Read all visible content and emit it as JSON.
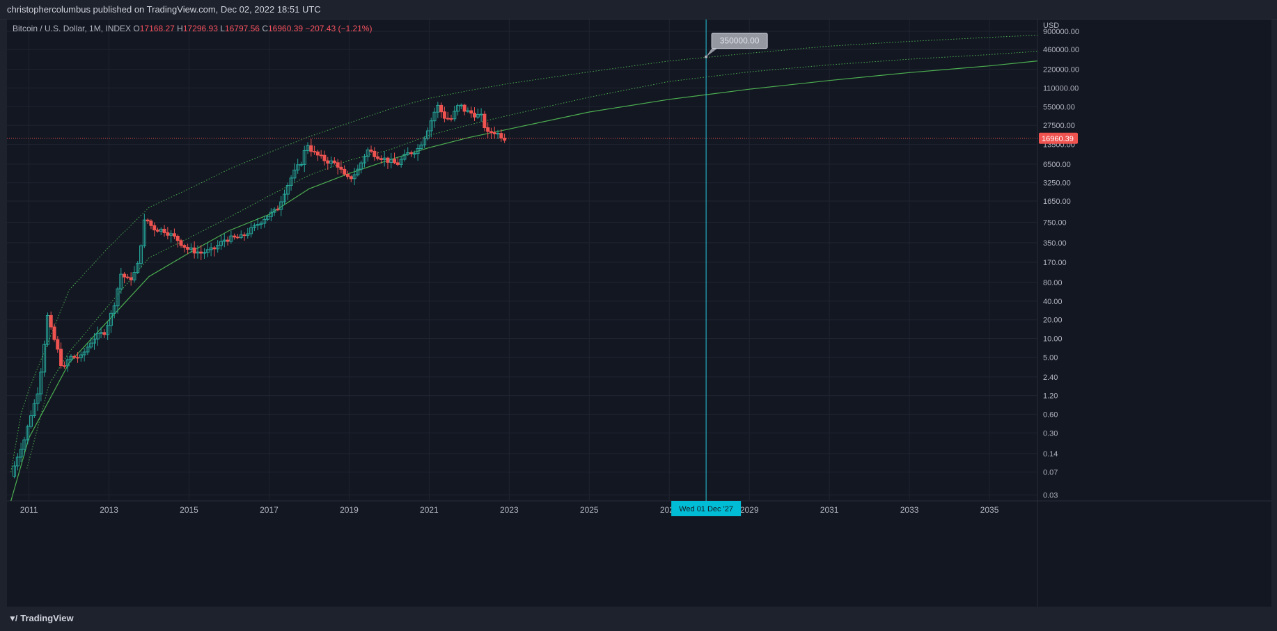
{
  "header": {
    "title": "christophercolumbus published on TradingView.com, Dec 02, 2022 18:51 UTC"
  },
  "legend": {
    "symbol": "Bitcoin / U.S. Dollar, 1M, INDEX",
    "o_label": "O",
    "o": "17168.27",
    "h_label": "H",
    "h": "17296.93",
    "l_label": "L",
    "l": "16797.56",
    "c_label": "C",
    "c": "16960.39",
    "change": "−207.43 (−1.21%)"
  },
  "footer": {
    "brand": "TradingView",
    "logo": "tradingview-logo-icon"
  },
  "colors": {
    "background": "#131722",
    "up": "#26a69a",
    "down": "#ef5350",
    "curve": "#4caf50",
    "price_line": "#ef5350",
    "crosshair": "#26c6da",
    "axis_text": "#b2b5be"
  },
  "chart_data": {
    "type": "candlestick",
    "y_scale": "log",
    "currency": "USD",
    "y_ticks": [
      "900000.00",
      "460000.00",
      "220000.00",
      "110000.00",
      "55000.00",
      "27500.00",
      "13500.00",
      "6500.00",
      "3250.00",
      "1650.00",
      "750.00",
      "350.00",
      "170.00",
      "80.00",
      "40.00",
      "20.00",
      "10.00",
      "5.00",
      "2.40",
      "1.20",
      "0.60",
      "0.30",
      "0.14",
      "0.07",
      "0.03"
    ],
    "x_ticks": [
      "2011",
      "2013",
      "2015",
      "2017",
      "2019",
      "2021",
      "2023",
      "2025",
      "2027",
      "2029",
      "2031",
      "2033",
      "2035"
    ],
    "xlim": [
      2010.45,
      2036.2
    ],
    "ylim": [
      0.024,
      1400000
    ],
    "last_price": "16960.39",
    "crosshair_date": "Wed 01 Dec '27",
    "crosshair_x": 2027.92,
    "annotation": {
      "text": "350000.00",
      "x": 2027.92,
      "y": 350000
    },
    "path": [
      [
        2010.55,
        0.06
      ],
      [
        2010.75,
        0.15
      ],
      [
        2010.9,
        0.25
      ],
      [
        2011.05,
        0.6
      ],
      [
        2011.2,
        1.2
      ],
      [
        2011.35,
        5
      ],
      [
        2011.45,
        25
      ],
      [
        2011.55,
        14
      ],
      [
        2011.7,
        7
      ],
      [
        2011.85,
        3
      ],
      [
        2012.0,
        5
      ],
      [
        2012.3,
        5
      ],
      [
        2012.6,
        10
      ],
      [
        2012.9,
        13
      ],
      [
        2013.1,
        30
      ],
      [
        2013.3,
        110
      ],
      [
        2013.5,
        85
      ],
      [
        2013.7,
        130
      ],
      [
        2013.9,
        900
      ],
      [
        2014.1,
        600
      ],
      [
        2014.4,
        550
      ],
      [
        2014.7,
        400
      ],
      [
        2014.95,
        280
      ],
      [
        2015.3,
        240
      ],
      [
        2015.6,
        270
      ],
      [
        2015.9,
        400
      ],
      [
        2016.3,
        430
      ],
      [
        2016.6,
        600
      ],
      [
        2016.9,
        900
      ],
      [
        2017.2,
        1200
      ],
      [
        2017.4,
        2500
      ],
      [
        2017.6,
        4500
      ],
      [
        2017.8,
        7000
      ],
      [
        2017.95,
        14000
      ],
      [
        2018.1,
        10000
      ],
      [
        2018.4,
        7500
      ],
      [
        2018.7,
        6500
      ],
      [
        2018.9,
        4000
      ],
      [
        2019.0,
        3700
      ],
      [
        2019.2,
        5000
      ],
      [
        2019.45,
        11000
      ],
      [
        2019.7,
        9000
      ],
      [
        2019.95,
        7500
      ],
      [
        2020.2,
        6500
      ],
      [
        2020.45,
        9500
      ],
      [
        2020.7,
        11000
      ],
      [
        2020.9,
        19000
      ],
      [
        2021.05,
        33000
      ],
      [
        2021.2,
        58000
      ],
      [
        2021.4,
        36000
      ],
      [
        2021.55,
        35000
      ],
      [
        2021.75,
        60000
      ],
      [
        2021.9,
        47000
      ],
      [
        2022.1,
        42000
      ],
      [
        2022.3,
        38000
      ],
      [
        2022.45,
        20000
      ],
      [
        2022.6,
        22000
      ],
      [
        2022.75,
        19500
      ],
      [
        2022.9,
        16960
      ]
    ],
    "curves": [
      {
        "name": "",
        "style": "solid",
        "points": [
          [
            2010.55,
            0.024
          ],
          [
            2011,
            0.25
          ],
          [
            2012,
            4
          ],
          [
            2013,
            20
          ],
          [
            2014,
            100
          ],
          [
            2015,
            240
          ],
          [
            2016,
            550
          ],
          [
            2017,
            1000
          ],
          [
            2018,
            2600
          ],
          [
            2019,
            4600
          ],
          [
            2020,
            7600
          ],
          [
            2021,
            12000
          ],
          [
            2022,
            17500
          ],
          [
            2023,
            24000
          ],
          [
            2025,
            45000
          ],
          [
            2027,
            72000
          ],
          [
            2029,
            105000
          ],
          [
            2031,
            145000
          ],
          [
            2033,
            195000
          ],
          [
            2035,
            250000
          ],
          [
            2036.2,
            300000
          ]
        ]
      },
      {
        "name": "",
        "style": "dotted",
        "points": [
          [
            2010.95,
            0.08
          ],
          [
            2011.5,
            1.8
          ],
          [
            2012,
            6
          ],
          [
            2013,
            35
          ],
          [
            2014,
            200
          ],
          [
            2015,
            420
          ],
          [
            2016,
            900
          ],
          [
            2017,
            2000
          ],
          [
            2018,
            4300
          ],
          [
            2019,
            7500
          ],
          [
            2020,
            11000
          ],
          [
            2021,
            19000
          ],
          [
            2022,
            28000
          ],
          [
            2023,
            40000
          ],
          [
            2025,
            78000
          ],
          [
            2027,
            140000
          ],
          [
            2029,
            200000
          ],
          [
            2031,
            260000
          ],
          [
            2033,
            320000
          ],
          [
            2035,
            380000
          ],
          [
            2036.2,
            430000
          ]
        ]
      },
      {
        "name": "",
        "style": "dotted",
        "points": [
          [
            2010.55,
            0.07
          ],
          [
            2010.8,
            0.6
          ],
          [
            2011,
            1.5
          ],
          [
            2012,
            60
          ],
          [
            2013,
            300
          ],
          [
            2014,
            1300
          ],
          [
            2015,
            2600
          ],
          [
            2016,
            5400
          ],
          [
            2017,
            10000
          ],
          [
            2018,
            18000
          ],
          [
            2019,
            30000
          ],
          [
            2020,
            50000
          ],
          [
            2021,
            75000
          ],
          [
            2022,
            100000
          ],
          [
            2023,
            130000
          ],
          [
            2025,
            200000
          ],
          [
            2027,
            300000
          ],
          [
            2029,
            400000
          ],
          [
            2031,
            520000
          ],
          [
            2033,
            620000
          ],
          [
            2035,
            720000
          ],
          [
            2036.2,
            780000
          ]
        ]
      }
    ]
  }
}
